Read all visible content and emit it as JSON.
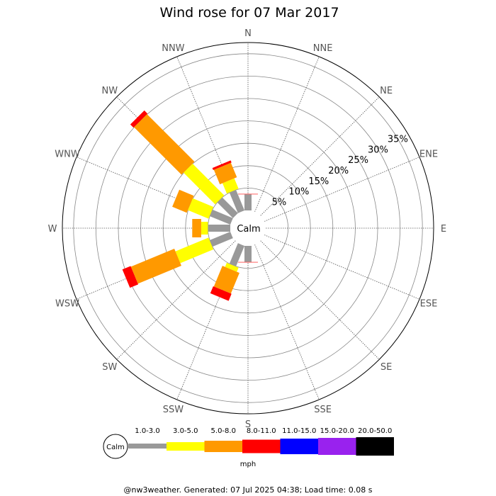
{
  "chart_data": {
    "type": "polar-bar",
    "title": "Wind rose for 07 Mar 2017",
    "directions": [
      "N",
      "NNE",
      "NE",
      "ENE",
      "E",
      "ESE",
      "SE",
      "SSE",
      "S",
      "SSW",
      "SW",
      "WSW",
      "W",
      "WNW",
      "NW",
      "NNW"
    ],
    "ring_labels": [
      "5%",
      "10%",
      "15%",
      "20%",
      "25%",
      "30%",
      "35%"
    ],
    "rmax_percent": 37.5,
    "calm_label": "Calm",
    "speed_bins": [
      {
        "label": "1.0-3.0",
        "color": "#999999"
      },
      {
        "label": "3.0-5.0",
        "color": "#ffff00"
      },
      {
        "label": "5.0-8.0",
        "color": "#ff9900"
      },
      {
        "label": "8.0-11.0",
        "color": "#ff0000"
      },
      {
        "label": "11.0-15.0",
        "color": "#0000ff"
      },
      {
        "label": "15.0-20.0",
        "color": "#9922ee"
      },
      {
        "label": "20.0-50.0",
        "color": "#000000"
      }
    ],
    "unit": "mph",
    "cumulative_percent": [
      [
        3.6,
        3.6,
        3.6,
        3.7,
        3.7,
        3.7,
        3.7
      ],
      [
        0,
        0,
        0,
        0,
        0,
        0,
        0
      ],
      [
        0,
        0,
        0,
        0,
        0,
        0,
        0
      ],
      [
        0,
        0,
        0,
        0,
        0,
        0,
        0
      ],
      [
        0,
        0,
        0,
        0,
        0,
        0,
        0
      ],
      [
        0,
        0,
        0,
        0,
        0,
        0,
        0
      ],
      [
        0,
        0,
        0,
        0,
        0,
        0,
        0
      ],
      [
        0,
        0,
        0,
        0,
        0,
        0,
        0
      ],
      [
        3.6,
        3.6,
        3.6,
        3.7,
        3.7,
        3.7,
        3.7
      ],
      [
        5,
        6,
        11,
        12.7,
        12.7,
        12.7,
        12.7
      ],
      [
        0,
        0,
        0,
        0,
        0,
        0,
        0
      ],
      [
        5,
        13,
        23.5,
        25.5,
        25.5,
        25.5,
        25.5
      ],
      [
        5,
        6.5,
        8.5,
        8.5,
        8.5,
        8.5,
        8.5
      ],
      [
        5,
        10,
        13.5,
        13.5,
        13.5,
        13.5,
        13.5
      ],
      [
        5,
        15,
        30,
        31,
        31,
        31,
        31
      ],
      [
        5,
        7.5,
        11,
        11.5,
        11.5,
        11.5,
        11.5
      ]
    ]
  },
  "footer": "@nw3weather. Generated: 07 Jul 2025 04:38; Load time: 0.08 s"
}
